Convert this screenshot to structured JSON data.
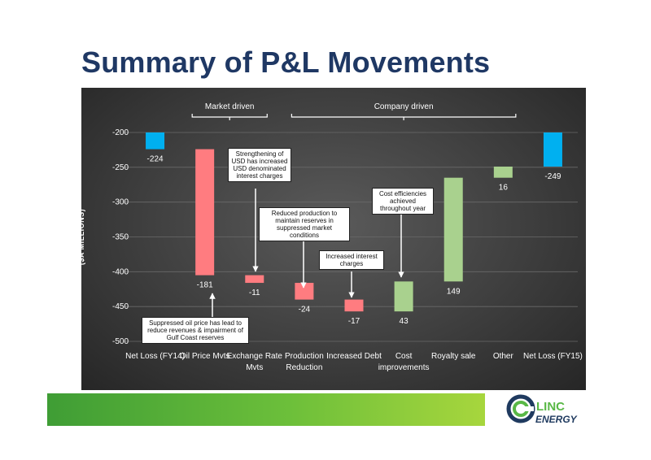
{
  "title": "Summary of P&L Movements",
  "colors": {
    "increase": "#a9d18e",
    "decrease": "#ff7c80",
    "total": "#00b0f0",
    "title": "#1f3864"
  },
  "chart_data": {
    "type": "bar",
    "subtype": "waterfall",
    "ylabel": "($A MILLIONS)",
    "ylim": [
      -500,
      -200
    ],
    "yticks": [
      -200,
      -250,
      -300,
      -350,
      -400,
      -450,
      -500
    ],
    "grid": true,
    "categories": [
      [
        "Net Loss (FY14)"
      ],
      [
        "Oil Price Mvts"
      ],
      [
        "Exchange Rate",
        "Mvts"
      ],
      [
        "Production",
        "Reduction"
      ],
      [
        "Increased Debt"
      ],
      [
        "Cost",
        "improvements"
      ],
      [
        "Royalty sale"
      ],
      [
        "Other"
      ],
      [
        "Net Loss (FY15)"
      ]
    ],
    "bars": [
      {
        "kind": "total",
        "start": -200,
        "end": -224,
        "label": "-224"
      },
      {
        "kind": "decrease",
        "start": -224,
        "end": -405,
        "label": "-181"
      },
      {
        "kind": "decrease",
        "start": -405,
        "end": -416,
        "label": "-11"
      },
      {
        "kind": "decrease",
        "start": -416,
        "end": -440,
        "label": "-24"
      },
      {
        "kind": "decrease",
        "start": -440,
        "end": -457,
        "label": "-17"
      },
      {
        "kind": "increase",
        "start": -457,
        "end": -414,
        "label": "43"
      },
      {
        "kind": "increase",
        "start": -414,
        "end": -265,
        "label": "149"
      },
      {
        "kind": "increase",
        "start": -265,
        "end": -249,
        "label": "16"
      },
      {
        "kind": "total",
        "start": -200,
        "end": -249,
        "label": "-249"
      }
    ],
    "groups": [
      {
        "label": "Market driven",
        "from": 1,
        "to": 2
      },
      {
        "label": "Company driven",
        "from": 3,
        "to": 7
      }
    ],
    "annotations": [
      "Strengthening of USD has increased USD denominated interest charges",
      "Reduced production to maintain reserves in suppressed market conditions",
      "Increased interest charges",
      "Cost efficiencies achieved throughout year",
      "Suppressed oil price has lead to reduce revenues & impairment of Gulf Coast reserves"
    ]
  },
  "logo": {
    "top": "LINC",
    "bottom": "ENERGY"
  }
}
